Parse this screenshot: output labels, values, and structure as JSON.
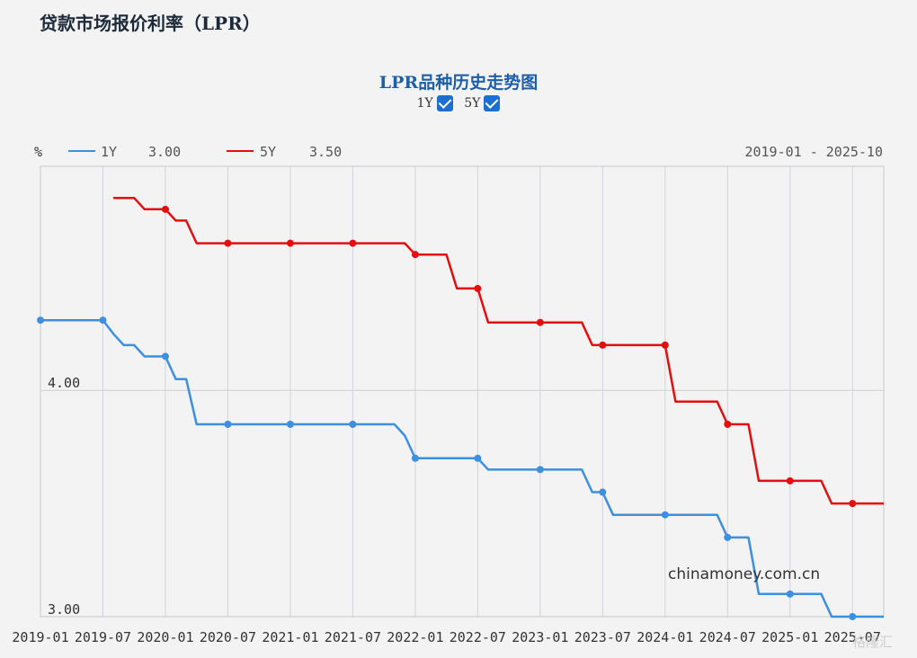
{
  "page": {
    "title": "贷款市场报价利率（LPR）"
  },
  "chart_toggles": [
    {
      "label": "1Y",
      "checked": true
    },
    {
      "label": "5Y",
      "checked": true
    }
  ],
  "watermark": "格隆汇",
  "colors": {
    "series_1y": "#3d8fe0",
    "series_5y": "#e40e0e",
    "title": "#1f5fa8"
  },
  "chart_data": {
    "type": "line",
    "title": "LPR品种历史走势图",
    "ylabel": "%",
    "date_range": "2019-01 - 2025-10",
    "watermark_text": "chinamoney.com.cn",
    "x_ticks": [
      "2019-01",
      "2019-07",
      "2020-01",
      "2020-07",
      "2021-01",
      "2021-07",
      "2022-01",
      "2022-07",
      "2023-01",
      "2023-07",
      "2024-01",
      "2024-07",
      "2025-01",
      "2025-07"
    ],
    "y_ticks": [
      {
        "value": 4.0,
        "label": "4.00"
      },
      {
        "value": 3.0,
        "label": "3.00"
      }
    ],
    "ylim": [
      3.0,
      4.99
    ],
    "legend": [
      {
        "name": "1Y",
        "value": "3.00"
      },
      {
        "name": "5Y",
        "value": "3.50"
      }
    ],
    "series": [
      {
        "name": "1Y",
        "points": [
          [
            "2019-01",
            4.31
          ],
          [
            "2019-07",
            4.31
          ],
          [
            "2019-08",
            4.25
          ],
          [
            "2019-09",
            4.2
          ],
          [
            "2019-10",
            4.2
          ],
          [
            "2019-11",
            4.15
          ],
          [
            "2020-01",
            4.15
          ],
          [
            "2020-02",
            4.05
          ],
          [
            "2020-03",
            4.05
          ],
          [
            "2020-04",
            3.85
          ],
          [
            "2020-07",
            3.85
          ],
          [
            "2021-01",
            3.85
          ],
          [
            "2021-07",
            3.85
          ],
          [
            "2021-11",
            3.85
          ],
          [
            "2021-12",
            3.8
          ],
          [
            "2022-01",
            3.7
          ],
          [
            "2022-07",
            3.7
          ],
          [
            "2022-08",
            3.65
          ],
          [
            "2023-01",
            3.65
          ],
          [
            "2023-05",
            3.65
          ],
          [
            "2023-06",
            3.55
          ],
          [
            "2023-07",
            3.55
          ],
          [
            "2023-08",
            3.45
          ],
          [
            "2024-01",
            3.45
          ],
          [
            "2024-06",
            3.45
          ],
          [
            "2024-07",
            3.35
          ],
          [
            "2024-09",
            3.35
          ],
          [
            "2024-10",
            3.1
          ],
          [
            "2025-01",
            3.1
          ],
          [
            "2025-04",
            3.1
          ],
          [
            "2025-05",
            3.0
          ],
          [
            "2025-07",
            3.0
          ],
          [
            "2025-10",
            3.0
          ]
        ]
      },
      {
        "name": "5Y",
        "points": [
          [
            "2019-08",
            4.85
          ],
          [
            "2019-10",
            4.85
          ],
          [
            "2019-11",
            4.8
          ],
          [
            "2020-01",
            4.8
          ],
          [
            "2020-02",
            4.75
          ],
          [
            "2020-03",
            4.75
          ],
          [
            "2020-04",
            4.65
          ],
          [
            "2020-07",
            4.65
          ],
          [
            "2021-01",
            4.65
          ],
          [
            "2021-07",
            4.65
          ],
          [
            "2021-12",
            4.65
          ],
          [
            "2022-01",
            4.6
          ],
          [
            "2022-04",
            4.6
          ],
          [
            "2022-05",
            4.45
          ],
          [
            "2022-07",
            4.45
          ],
          [
            "2022-08",
            4.3
          ],
          [
            "2023-01",
            4.3
          ],
          [
            "2023-05",
            4.3
          ],
          [
            "2023-06",
            4.2
          ],
          [
            "2023-07",
            4.2
          ],
          [
            "2024-01",
            4.2
          ],
          [
            "2024-02",
            3.95
          ],
          [
            "2024-06",
            3.95
          ],
          [
            "2024-07",
            3.85
          ],
          [
            "2024-09",
            3.85
          ],
          [
            "2024-10",
            3.6
          ],
          [
            "2025-01",
            3.6
          ],
          [
            "2025-04",
            3.6
          ],
          [
            "2025-05",
            3.5
          ],
          [
            "2025-07",
            3.5
          ],
          [
            "2025-10",
            3.5
          ]
        ]
      }
    ],
    "markers": {
      "1Y": [
        "2019-01",
        "2019-07",
        "2020-01",
        "2020-07",
        "2021-01",
        "2021-07",
        "2022-01",
        "2022-07",
        "2023-01",
        "2023-07",
        "2024-01",
        "2024-07",
        "2025-01",
        "2025-07"
      ],
      "5Y": [
        "2020-01",
        "2020-07",
        "2021-01",
        "2021-07",
        "2022-01",
        "2022-07",
        "2023-01",
        "2023-07",
        "2024-01",
        "2024-07",
        "2025-01",
        "2025-07"
      ]
    },
    "grid": true
  }
}
